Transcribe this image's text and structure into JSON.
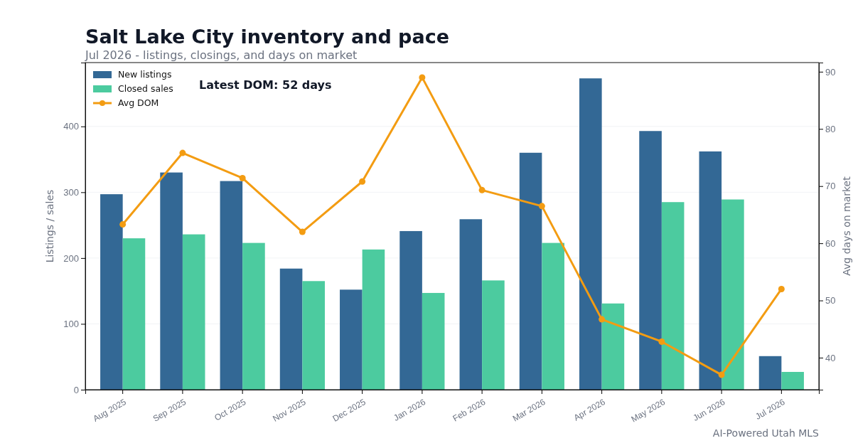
{
  "chart_data": {
    "type": "bar",
    "title": "Salt Lake City inventory and pace",
    "subtitle": "Jul 2026 - listings, closings, and days on market",
    "ylabel": "Listings / sales",
    "y2label": "Avg days on market",
    "categories": [
      "Aug 2025",
      "Sep 2025",
      "Oct 2025",
      "Nov 2025",
      "Dec 2025",
      "Jan 2026",
      "Feb 2026",
      "Mar 2026",
      "Apr 2026",
      "May 2026",
      "Jun 2026",
      "Jul 2026"
    ],
    "series": [
      {
        "name": "New listings",
        "color": "#336895",
        "values": [
          297,
          330,
          317,
          184,
          152,
          241,
          259,
          360,
          473,
          393,
          362,
          51
        ]
      },
      {
        "name": "Closed sales",
        "color": "#4ccb9f",
        "values": [
          230,
          236,
          223,
          165,
          213,
          147,
          166,
          223,
          131,
          285,
          289,
          27
        ]
      },
      {
        "name": "Avg DOM",
        "type": "line",
        "axis": "y2",
        "color": "#f39c12",
        "marker": "circle",
        "values": [
          63.3,
          75.8,
          71.4,
          62.0,
          70.8,
          89.0,
          69.3,
          66.5,
          46.7,
          42.8,
          37.0,
          52.0
        ]
      }
    ],
    "ylim": [
      0,
      497
    ],
    "yticks": [
      0,
      100,
      200,
      300,
      400
    ],
    "y2lim": [
      34.4,
      91.6
    ],
    "y2ticks": [
      40,
      50,
      60,
      70,
      80,
      90
    ],
    "grid": "y",
    "legend": "top left",
    "annotations": [
      "Latest DOM: 52 days",
      "AI-Powered Utah MLS"
    ]
  }
}
